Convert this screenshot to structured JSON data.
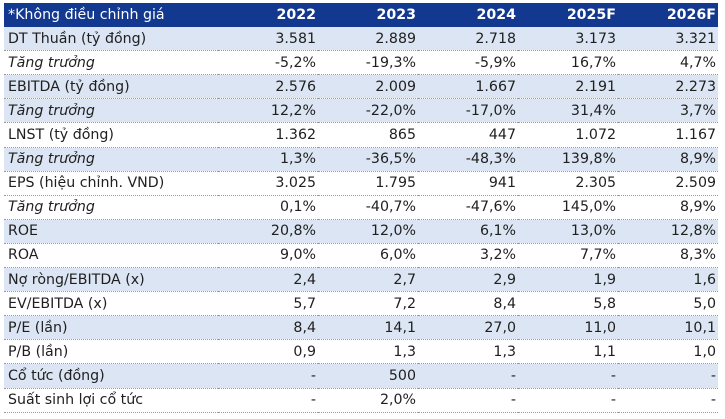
{
  "header": {
    "label": "*Không điều chỉnh giá",
    "years": [
      "2022",
      "2023",
      "2024",
      "2025F",
      "2026F"
    ]
  },
  "rows": [
    {
      "label": "DT Thuần (tỷ đồng)",
      "italic": false,
      "shaded": true,
      "values": [
        "3.581",
        "2.889",
        "2.718",
        "3.173",
        "3.321"
      ]
    },
    {
      "label": "Tăng trưởng",
      "italic": true,
      "shaded": false,
      "values": [
        "-5,2%",
        "-19,3%",
        "-5,9%",
        "16,7%",
        "4,7%"
      ]
    },
    {
      "label": "EBITDA (tỷ đồng)",
      "italic": false,
      "shaded": true,
      "values": [
        "2.576",
        "2.009",
        "1.667",
        "2.191",
        "2.273"
      ]
    },
    {
      "label": "Tăng trưởng",
      "italic": true,
      "shaded": true,
      "values": [
        "12,2%",
        "-22,0%",
        "-17,0%",
        "31,4%",
        "3,7%"
      ]
    },
    {
      "label": "LNST (tỷ đồng)",
      "italic": false,
      "shaded": false,
      "values": [
        "1.362",
        "865",
        "447",
        "1.072",
        "1.167"
      ]
    },
    {
      "label": "Tăng trưởng",
      "italic": true,
      "shaded": true,
      "values": [
        "1,3%",
        "-36,5%",
        "-48,3%",
        "139,8%",
        "8,9%"
      ]
    },
    {
      "label": "EPS (hiệu chỉnh. VND)",
      "italic": false,
      "shaded": false,
      "values": [
        "3.025",
        "1.795",
        "941",
        "2.305",
        "2.509"
      ]
    },
    {
      "label": "Tăng trưởng",
      "italic": true,
      "shaded": false,
      "values": [
        "0,1%",
        "-40,7%",
        "-47,6%",
        "145,0%",
        "8,9%"
      ]
    },
    {
      "label": "ROE",
      "italic": false,
      "shaded": true,
      "values": [
        "20,8%",
        "12,0%",
        "6,1%",
        "13,0%",
        "12,8%"
      ]
    },
    {
      "label": "ROA",
      "italic": false,
      "shaded": false,
      "values": [
        "9,0%",
        "6,0%",
        "3,2%",
        "7,7%",
        "8,3%"
      ]
    },
    {
      "label": "Nợ ròng/EBITDA (x)",
      "italic": false,
      "shaded": true,
      "values": [
        "2,4",
        "2,7",
        "2,9",
        "1,9",
        "1,6"
      ]
    },
    {
      "label": "EV/EBITDA (x)",
      "italic": false,
      "shaded": false,
      "values": [
        "5,7",
        "7,2",
        "8,4",
        "5,8",
        "5,0"
      ]
    },
    {
      "label": "P/E (lần)",
      "italic": false,
      "shaded": true,
      "values": [
        "8,4",
        "14,1",
        "27,0",
        "11,0",
        "10,1"
      ]
    },
    {
      "label": "P/B (lần)",
      "italic": false,
      "shaded": false,
      "values": [
        "0,9",
        "1,3",
        "1,3",
        "1,1",
        "1,0"
      ]
    },
    {
      "label": "Cổ tức (đồng)",
      "italic": false,
      "shaded": true,
      "values": [
        "-",
        "500",
        "-",
        "-",
        "-"
      ]
    },
    {
      "label": "Suất sinh lợi cổ tức",
      "italic": false,
      "shaded": false,
      "values": [
        "-",
        "2,0%",
        "-",
        "-",
        "-"
      ]
    }
  ]
}
